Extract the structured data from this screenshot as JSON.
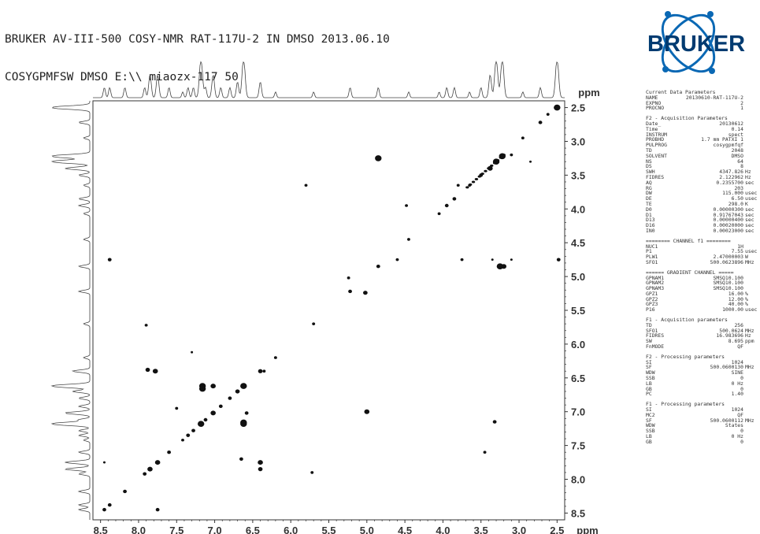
{
  "header": {
    "line1": "BRUKER AV-III-500 COSY-NMR RAT-117U-2 IN DMSO 2013.06.10",
    "line2": "COSYGPMFSW DMSO E:\\\\ miaozx-117 50"
  },
  "logo": {
    "text": "BRUKER",
    "colors": {
      "dark": "#003b71",
      "ring": "#0a68b4"
    }
  },
  "chart_data": {
    "type": "scatter",
    "subtype": "2D COSY contour plot",
    "x_unit": "ppm",
    "y_unit": "ppm",
    "xlim": [
      8.6,
      2.4
    ],
    "ylim": [
      2.4,
      8.6
    ],
    "x_ticks": [
      "8.5",
      "8.0",
      "7.5",
      "7.0",
      "6.5",
      "6.0",
      "5.5",
      "5.0",
      "4.5",
      "4.0",
      "3.5",
      "3.0",
      "2.5"
    ],
    "y_ticks": [
      "2.5",
      "3.0",
      "3.5",
      "4.0",
      "4.5",
      "5.0",
      "5.5",
      "6.0",
      "6.5",
      "7.0",
      "7.5",
      "8.0",
      "8.5"
    ],
    "diagonal_peaks": [
      [
        2.5,
        2.5,
        4
      ],
      [
        2.72,
        2.72,
        2
      ],
      [
        2.95,
        2.95,
        1.5
      ],
      [
        3.22,
        3.22,
        4
      ],
      [
        3.3,
        3.3,
        4
      ],
      [
        3.38,
        3.4,
        3
      ],
      [
        3.5,
        3.5,
        2
      ],
      [
        3.65,
        3.65,
        1.5
      ],
      [
        3.85,
        3.85,
        2
      ],
      [
        3.95,
        3.95,
        2
      ],
      [
        4.05,
        4.07,
        1.5
      ],
      [
        4.45,
        4.45,
        1.5
      ],
      [
        4.85,
        4.85,
        2
      ],
      [
        5.22,
        5.22,
        2
      ],
      [
        5.7,
        5.7,
        1.5
      ],
      [
        6.2,
        6.2,
        1.5
      ],
      [
        6.4,
        6.4,
        2.5
      ],
      [
        6.62,
        6.62,
        4
      ],
      [
        6.7,
        6.7,
        2.5
      ],
      [
        6.8,
        6.8,
        2
      ],
      [
        6.92,
        6.92,
        2
      ],
      [
        7.02,
        7.02,
        3
      ],
      [
        7.12,
        7.12,
        2
      ],
      [
        7.18,
        7.18,
        4
      ],
      [
        7.28,
        7.28,
        2
      ],
      [
        7.35,
        7.35,
        2
      ],
      [
        7.42,
        7.42,
        1.5
      ],
      [
        7.6,
        7.6,
        2
      ],
      [
        7.75,
        7.75,
        3
      ],
      [
        7.85,
        7.85,
        3
      ],
      [
        7.92,
        7.92,
        2
      ],
      [
        8.18,
        8.18,
        2
      ],
      [
        8.38,
        8.38,
        2
      ],
      [
        8.45,
        8.45,
        2
      ]
    ],
    "cross_peaks": [
      [
        4.85,
        3.25,
        4
      ],
      [
        3.25,
        4.85,
        4
      ],
      [
        5.02,
        5.24,
        2.5
      ],
      [
        5.24,
        5.02,
        1.5
      ],
      [
        3.2,
        4.85,
        3
      ],
      [
        8.38,
        4.75,
        2
      ],
      [
        3.75,
        4.75,
        1.5
      ],
      [
        4.6,
        4.75,
        1.5
      ],
      [
        2.48,
        4.75,
        2
      ],
      [
        3.35,
        4.75,
        1
      ],
      [
        3.1,
        4.75,
        1
      ],
      [
        7.78,
        6.4,
        3
      ],
      [
        7.88,
        6.38,
        2.5
      ],
      [
        6.4,
        7.75,
        3
      ],
      [
        6.4,
        7.85,
        2.5
      ],
      [
        7.16,
        6.62,
        4
      ],
      [
        6.62,
        7.16,
        4
      ],
      [
        6.62,
        7.18,
        4
      ],
      [
        7.16,
        6.66,
        4
      ],
      [
        6.65,
        7.7,
        2
      ],
      [
        6.58,
        7.02,
        2
      ],
      [
        7.02,
        6.62,
        3
      ],
      [
        5.0,
        7.0,
        3
      ],
      [
        3.32,
        7.15,
        2
      ],
      [
        3.45,
        7.6,
        1.5
      ],
      [
        7.5,
        6.95,
        1.5
      ],
      [
        5.72,
        7.9,
        1.5
      ],
      [
        7.9,
        5.72,
        1.5
      ],
      [
        8.45,
        7.75,
        1
      ],
      [
        7.75,
        8.45,
        2
      ],
      [
        7.3,
        6.12,
        1
      ],
      [
        6.35,
        6.4,
        1.5
      ],
      [
        3.8,
        3.65,
        1.5
      ],
      [
        5.8,
        3.65,
        1.5
      ],
      [
        4.48,
        3.95,
        1.5
      ],
      [
        3.1,
        3.2,
        1.5
      ],
      [
        2.85,
        3.3,
        1
      ],
      [
        2.62,
        2.6,
        1.5
      ]
    ]
  },
  "params": [
    {
      "k": "Current Data Parameters",
      "v": "",
      "u": "",
      "head": true,
      "first": true
    },
    {
      "k": "NAME",
      "v": "20130610-RAT-117U-2",
      "u": ""
    },
    {
      "k": "EXPNO",
      "v": "2",
      "u": ""
    },
    {
      "k": "PROCNO",
      "v": "1",
      "u": ""
    },
    {
      "k": "F2 - Acquisition Parameters",
      "v": "",
      "u": "",
      "head": true
    },
    {
      "k": "Date_",
      "v": "20130612",
      "u": ""
    },
    {
      "k": "Time",
      "v": "0.14",
      "u": ""
    },
    {
      "k": "INSTRUM",
      "v": "spect",
      "u": ""
    },
    {
      "k": "PROBHD",
      "v": "1.7 mm PATXI 1",
      "u": ""
    },
    {
      "k": "PULPROG",
      "v": "cosygpmfqf",
      "u": ""
    },
    {
      "k": "TD",
      "v": "2048",
      "u": ""
    },
    {
      "k": "SOLVENT",
      "v": "DMSO",
      "u": ""
    },
    {
      "k": "NS",
      "v": "64",
      "u": ""
    },
    {
      "k": "DS",
      "v": "8",
      "u": ""
    },
    {
      "k": "SWH",
      "v": "4347.826",
      "u": "Hz"
    },
    {
      "k": "FIDRES",
      "v": "2.122962",
      "u": "Hz"
    },
    {
      "k": "AQ",
      "v": "0.2355700",
      "u": "sec"
    },
    {
      "k": "RG",
      "v": "203",
      "u": ""
    },
    {
      "k": "DW",
      "v": "115.000",
      "u": "usec"
    },
    {
      "k": "DE",
      "v": "6.50",
      "u": "usec"
    },
    {
      "k": "TE",
      "v": "298.0",
      "u": "K"
    },
    {
      "k": "D0",
      "v": "0.00000300",
      "u": "sec"
    },
    {
      "k": "D1",
      "v": "0.91767043",
      "u": "sec"
    },
    {
      "k": "D13",
      "v": "0.00000400",
      "u": "sec"
    },
    {
      "k": "D16",
      "v": "0.00020000",
      "u": "sec"
    },
    {
      "k": "IN0",
      "v": "0.00023000",
      "u": "sec"
    },
    {
      "k": "======== CHANNEL f1 ========",
      "v": "",
      "u": "",
      "head": true
    },
    {
      "k": "NUC1",
      "v": "1H",
      "u": ""
    },
    {
      "k": "P1",
      "v": "7.55",
      "u": "usec"
    },
    {
      "k": "PLW1",
      "v": "2.47000003",
      "u": "W"
    },
    {
      "k": "SFO1",
      "v": "500.0623896",
      "u": "MHz"
    },
    {
      "k": "====== GRADIENT CHANNEL =====",
      "v": "",
      "u": "",
      "head": true
    },
    {
      "k": "GPNAM1",
      "v": "SMSQ10.100",
      "u": ""
    },
    {
      "k": "GPNAM2",
      "v": "SMSQ10.100",
      "u": ""
    },
    {
      "k": "GPNAM3",
      "v": "SMSQ10.100",
      "u": ""
    },
    {
      "k": "GPZ1",
      "v": "16.00",
      "u": "%"
    },
    {
      "k": "GPZ2",
      "v": "12.00",
      "u": "%"
    },
    {
      "k": "GPZ3",
      "v": "40.00",
      "u": "%"
    },
    {
      "k": "P16",
      "v": "1000.00",
      "u": "usec"
    },
    {
      "k": "F1 - Acquisition parameters",
      "v": "",
      "u": "",
      "head": true
    },
    {
      "k": "TD",
      "v": "256",
      "u": ""
    },
    {
      "k": "SFO1",
      "v": "500.0624",
      "u": "MHz"
    },
    {
      "k": "FIDRES",
      "v": "16.983696",
      "u": "Hz"
    },
    {
      "k": "SW",
      "v": "8.695",
      "u": "ppm"
    },
    {
      "k": "FnMODE",
      "v": "QF",
      "u": ""
    },
    {
      "k": "F2 - Processing parameters",
      "v": "",
      "u": "",
      "head": true
    },
    {
      "k": "SI",
      "v": "1024",
      "u": ""
    },
    {
      "k": "SF",
      "v": "500.0600130",
      "u": "MHz"
    },
    {
      "k": "WDW",
      "v": "SINE",
      "u": ""
    },
    {
      "k": "SSB",
      "v": "0",
      "u": ""
    },
    {
      "k": "LB",
      "v": "0 Hz",
      "u": ""
    },
    {
      "k": "GB",
      "v": "0",
      "u": ""
    },
    {
      "k": "PC",
      "v": "1.40",
      "u": ""
    },
    {
      "k": "F1 - Processing parameters",
      "v": "",
      "u": "",
      "head": true
    },
    {
      "k": "SI",
      "v": "1024",
      "u": ""
    },
    {
      "k": "MC2",
      "v": "QF",
      "u": ""
    },
    {
      "k": "SF",
      "v": "500.0600112",
      "u": "MHz"
    },
    {
      "k": "WDW",
      "v": "States",
      "u": ""
    },
    {
      "k": "SSB",
      "v": "0",
      "u": ""
    },
    {
      "k": "LB",
      "v": "0 Hz",
      "u": ""
    },
    {
      "k": "GB",
      "v": "0",
      "u": ""
    }
  ]
}
